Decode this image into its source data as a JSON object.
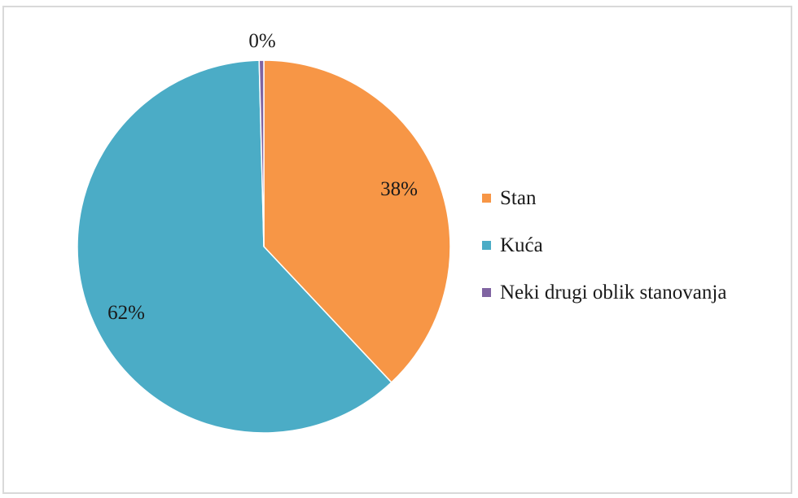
{
  "chart_data": {
    "type": "pie",
    "title": "",
    "slices": [
      {
        "label": "Stan",
        "value": 38,
        "display": "38%",
        "color": "#F79646"
      },
      {
        "label": "Kuća",
        "value": 61.6,
        "display": "62%",
        "color": "#4BACC6"
      },
      {
        "label": "Neki drugi oblik stanovanja",
        "value": 0.4,
        "display": "0%",
        "color": "#8064A2"
      }
    ],
    "legend_position": "right"
  }
}
